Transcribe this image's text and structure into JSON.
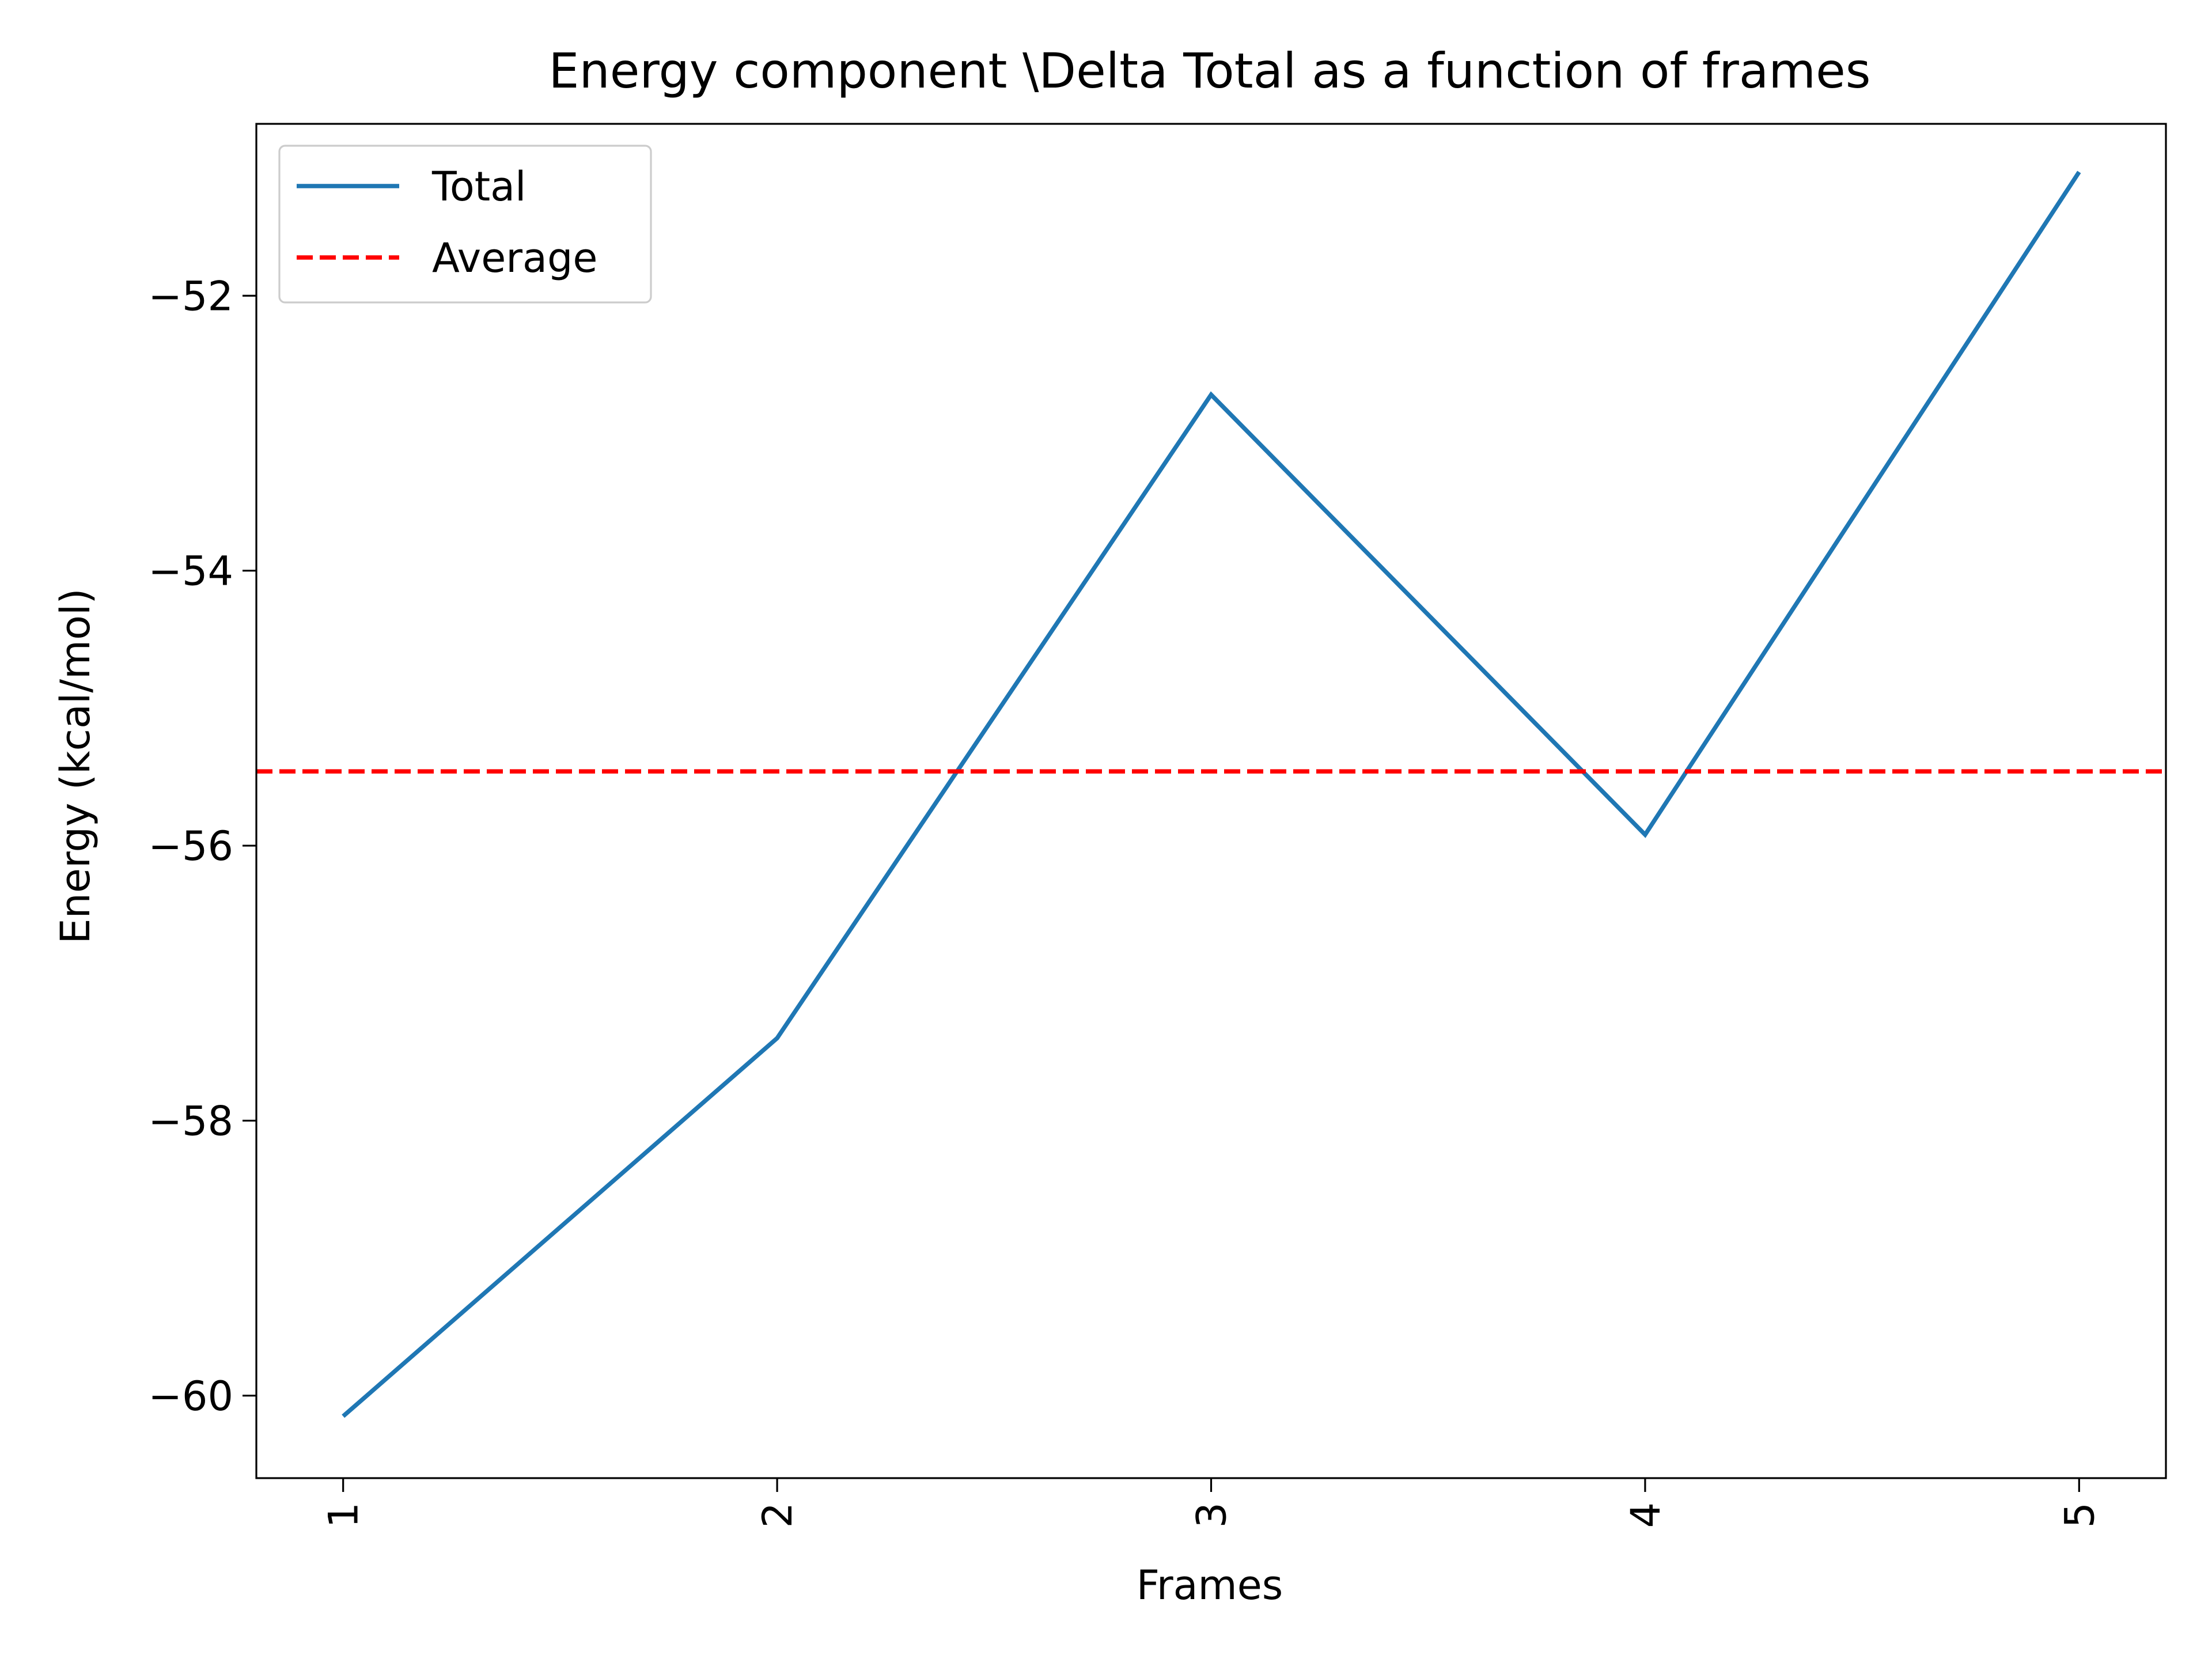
{
  "chart_data": {
    "type": "line",
    "title": "Energy component \\Delta Total as a function of frames",
    "xlabel": "Frames",
    "ylabel": "Energy (kcal/mol)",
    "x": [
      1,
      2,
      3,
      4,
      5
    ],
    "x_tick_labels": [
      "1",
      "2",
      "3",
      "4",
      "5"
    ],
    "x_tick_rotation": "vertical",
    "y_ticks": [
      -60,
      -58,
      -56,
      -54,
      -52
    ],
    "y_tick_labels": [
      "−60",
      "−58",
      "−56",
      "−54",
      "−52"
    ],
    "xlim": [
      0.8,
      5.2
    ],
    "ylim": [
      -60.6,
      -50.75
    ],
    "grid": false,
    "legend_position": "upper-left",
    "series": [
      {
        "name": "Total",
        "values": [
          -60.15,
          -57.4,
          -52.72,
          -55.92,
          -51.1
        ],
        "color": "#1f77b4",
        "style": "solid"
      },
      {
        "name": "Average",
        "values": [
          -55.46,
          -55.46,
          -55.46,
          -55.46,
          -55.46
        ],
        "color": "#ff0000",
        "style": "dashed"
      }
    ]
  }
}
